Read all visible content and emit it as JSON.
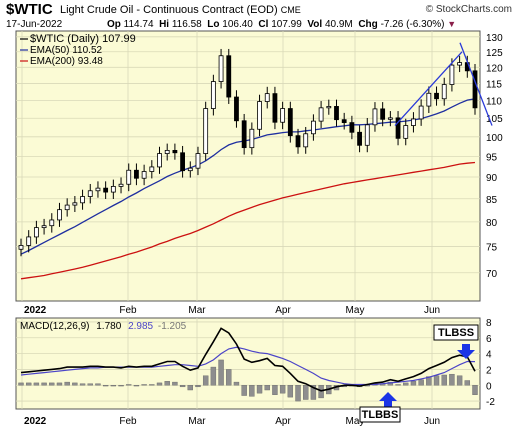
{
  "header": {
    "symbol": "$WTIC",
    "name": "Light Crude Oil - Continuous Contract (EOD)",
    "exchange": "CME",
    "watermark": "© StockCharts.com",
    "date": "17-Jun-2022",
    "op_label": "Op",
    "op_value": "114.74",
    "hi_label": "Hi",
    "hi_value": "116.58",
    "lo_label": "Lo",
    "lo_value": "106.40",
    "cl_label": "Cl",
    "cl_value": "107.99",
    "vol_label": "Vol",
    "vol_value": "40.9M",
    "chg_label": "Chg",
    "chg_value": "-7.26 (-6.30%)"
  },
  "price_legend": {
    "main": "$WTIC (Daily) 107.99",
    "ema50": "EMA(50) 110.52",
    "ema200": "EMA(200) 93.48"
  },
  "macd_legend": {
    "label": "MACD(12,26,9)",
    "macd": "1.780",
    "signal": "2.985",
    "hist": "-1.205"
  },
  "annotations": {
    "tlbss": "TLBSS",
    "tlbbs": "TLBBS"
  },
  "colors": {
    "panel_bg": "#fbfbd5",
    "grid": "#d9d9b8",
    "ema50": "#1f2fa0",
    "ema200": "#cc1111",
    "signal": "#4b44c8",
    "hist": "#8e8e8e",
    "trendline": "#2a3ad8",
    "arrow": "#1b35e6"
  },
  "chart_data": [
    {
      "type": "candlestick",
      "x_ticks": [
        "2022",
        "Feb",
        "Mar",
        "Apr",
        "May",
        "Jun"
      ],
      "y_ticks": [
        70,
        75,
        80,
        85,
        90,
        95,
        100,
        105,
        110,
        115,
        120,
        125,
        130
      ],
      "y_scale": "log",
      "ylim": [
        65,
        132
      ],
      "grid": true,
      "legend_position": "top-left",
      "series": [
        {
          "name": "$WTIC (Daily)",
          "style": "candles",
          "close": [
            75.2,
            76.9,
            78.8,
            79.2,
            80.4,
            82.6,
            83.6,
            84.1,
            85.5,
            86.8,
            87.4,
            86.5,
            87.8,
            88.3,
            91.6,
            89.7,
            91.3,
            92.4,
            95.7,
            96.5,
            95.9,
            91.5,
            92.1,
            95.7,
            107.7,
            115.6,
            123.7,
            111.0,
            104.3,
            97.2,
            102.0,
            109.7,
            112.0,
            103.9,
            107.7,
            100.3,
            97.4,
            100.8,
            104.2,
            107.9,
            108.3,
            104.6,
            103.8,
            101.2,
            97.8,
            103.2,
            107.6,
            104.7,
            105.1,
            99.6,
            103.0,
            104.8,
            108.4,
            112.1,
            110.5,
            114.7,
            120.7,
            121.5,
            118.9,
            107.9
          ]
        },
        {
          "name": "EMA(50)",
          "style": "line",
          "last": 110.52,
          "values": [
            73.5,
            74.2,
            75.0,
            75.8,
            76.6,
            77.4,
            78.2,
            79.0,
            79.9,
            80.8,
            81.7,
            82.6,
            83.5,
            84.4,
            85.4,
            86.3,
            87.3,
            88.2,
            89.1,
            90.1,
            90.9,
            91.6,
            92.2,
            92.9,
            93.9,
            95.2,
            96.7,
            97.9,
            98.6,
            98.9,
            99.3,
            99.9,
            100.5,
            100.8,
            101.1,
            101.3,
            101.3,
            101.6,
            101.8,
            102.1,
            102.4,
            102.7,
            102.9,
            103.2,
            103.2,
            103.3,
            103.5,
            103.7,
            103.9,
            104.0,
            104.2,
            104.5,
            104.9,
            105.5,
            106.2,
            107.0,
            108.1,
            109.2,
            110.1,
            110.5
          ]
        },
        {
          "name": "EMA(200)",
          "style": "line",
          "last": 93.48,
          "values": [
            68.9,
            69.1,
            69.3,
            69.5,
            69.8,
            70.1,
            70.4,
            70.7,
            71.0,
            71.4,
            71.8,
            72.2,
            72.6,
            73.0,
            73.5,
            73.9,
            74.4,
            74.9,
            75.5,
            76.0,
            76.6,
            77.1,
            77.6,
            78.2,
            78.9,
            79.6,
            80.4,
            81.2,
            81.9,
            82.5,
            83.1,
            83.7,
            84.2,
            84.7,
            85.2,
            85.6,
            86.0,
            86.4,
            86.8,
            87.2,
            87.6,
            88.0,
            88.4,
            88.7,
            89.0,
            89.3,
            89.6,
            89.9,
            90.2,
            90.5,
            90.8,
            91.1,
            91.4,
            91.7,
            92.0,
            92.3,
            92.7,
            93.1,
            93.3,
            93.48
          ]
        }
      ],
      "trendlines": [
        {
          "from": [
            "May",
            103
          ],
          "to": [
            "Jun",
            125
          ]
        },
        {
          "from": [
            "Jun",
            127
          ],
          "to": [
            "Jun",
            106
          ]
        }
      ]
    },
    {
      "type": "line",
      "title": "MACD(12,26,9)",
      "x_ticks": [
        "2022",
        "Feb",
        "Mar",
        "Apr",
        "May",
        "Jun"
      ],
      "y_ticks": [
        -2,
        0,
        2,
        4,
        6,
        8
      ],
      "ylim": [
        -3,
        8.5
      ],
      "grid": true,
      "series": [
        {
          "name": "MACD",
          "last": 1.78,
          "values": [
            1.6,
            1.7,
            1.8,
            1.9,
            2.0,
            2.1,
            2.3,
            2.3,
            2.3,
            2.4,
            2.4,
            2.3,
            2.3,
            2.2,
            2.4,
            2.3,
            2.4,
            2.4,
            2.7,
            3.0,
            3.0,
            2.4,
            1.9,
            2.2,
            3.9,
            5.5,
            7.2,
            6.6,
            5.2,
            3.3,
            2.9,
            3.1,
            3.4,
            2.5,
            2.4,
            1.5,
            0.5,
            0.2,
            -0.3,
            -0.7,
            -0.5,
            -0.2,
            0.0,
            0.0,
            -0.1,
            0.1,
            0.3,
            0.4,
            0.7,
            0.5,
            0.8,
            1.1,
            1.5,
            2.1,
            2.5,
            2.9,
            3.5,
            3.8,
            3.6,
            1.78
          ]
        },
        {
          "name": "Signal",
          "last": 2.985,
          "values": [
            1.3,
            1.4,
            1.5,
            1.6,
            1.7,
            1.8,
            1.9,
            2.0,
            2.1,
            2.2,
            2.2,
            2.3,
            2.3,
            2.3,
            2.3,
            2.3,
            2.3,
            2.3,
            2.4,
            2.5,
            2.6,
            2.6,
            2.5,
            2.4,
            2.7,
            3.2,
            4.0,
            4.6,
            4.8,
            4.6,
            4.3,
            4.1,
            4.0,
            3.7,
            3.4,
            3.0,
            2.5,
            2.0,
            1.5,
            0.9,
            0.6,
            0.4,
            0.2,
            0.1,
            0.1,
            0.1,
            0.1,
            0.2,
            0.3,
            0.4,
            0.5,
            0.6,
            0.8,
            1.0,
            1.3,
            1.6,
            2.1,
            2.6,
            3.0,
            2.985
          ]
        },
        {
          "name": "Histogram",
          "style": "bars",
          "last": -1.205,
          "values": [
            0.3,
            0.3,
            0.3,
            0.3,
            0.3,
            0.3,
            0.4,
            0.3,
            0.2,
            0.2,
            0.2,
            0.0,
            0.0,
            -0.1,
            0.1,
            0.0,
            0.1,
            0.1,
            0.3,
            0.5,
            0.4,
            -0.2,
            -0.6,
            -0.2,
            1.2,
            2.3,
            3.2,
            2.0,
            0.4,
            -1.3,
            -1.4,
            -1.0,
            -0.6,
            -1.2,
            -1.0,
            -1.5,
            -2.0,
            -1.8,
            -1.8,
            -1.6,
            -1.1,
            -0.6,
            -0.2,
            -0.1,
            -0.2,
            0.0,
            0.2,
            0.2,
            0.4,
            0.1,
            0.3,
            0.5,
            0.7,
            1.1,
            1.2,
            1.3,
            1.4,
            1.2,
            0.6,
            -1.205
          ]
        }
      ]
    }
  ]
}
